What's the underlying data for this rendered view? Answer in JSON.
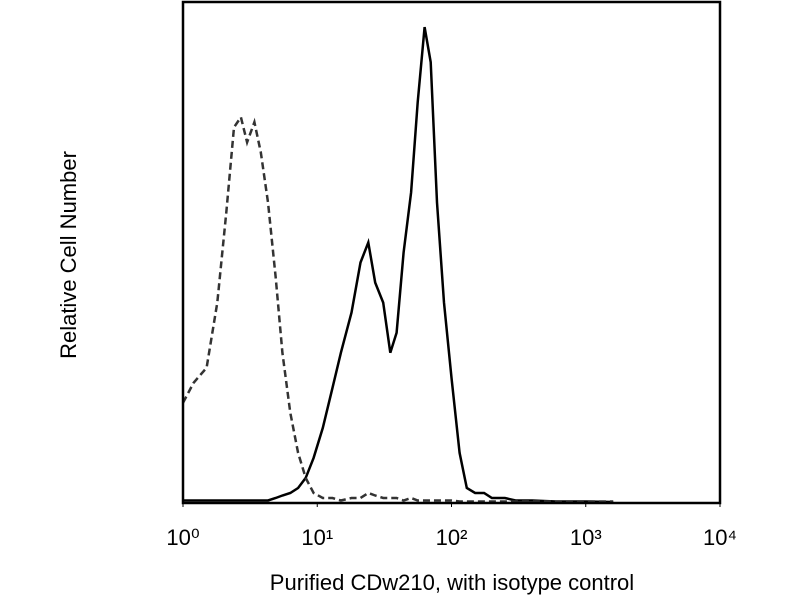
{
  "chart_data": {
    "type": "line",
    "xlabel": "Purified CDw210, with isotype control",
    "ylabel": "Relative Cell Number",
    "xscale": "log",
    "xlim": [
      1,
      10000
    ],
    "xticks": [
      {
        "value": 1,
        "label": "10⁰"
      },
      {
        "value": 10,
        "label": "10¹"
      },
      {
        "value": 100,
        "label": "10²"
      },
      {
        "value": 1000,
        "label": "10³"
      },
      {
        "value": 10000,
        "label": "10⁴"
      }
    ],
    "ylim": [
      0,
      100
    ],
    "x": [
      1,
      1.2,
      1.5,
      1.8,
      2.1,
      2.4,
      2.7,
      3.0,
      3.4,
      3.8,
      4.3,
      4.9,
      5.5,
      6.3,
      7.2,
      8.2,
      9.4,
      11,
      13,
      15,
      18,
      21,
      24,
      27,
      31,
      35,
      39,
      44,
      50,
      56,
      63,
      70,
      78,
      88,
      100,
      115,
      130,
      150,
      175,
      200,
      250,
      300,
      400,
      600,
      1000,
      1600
    ],
    "series": [
      {
        "color": "#000000",
        "dash": false,
        "values": [
          0.5,
          0.5,
          0.5,
          0.5,
          0.5,
          0.5,
          0.5,
          0.5,
          0.5,
          0.5,
          0.5,
          1,
          1.5,
          2,
          3,
          5,
          9,
          15,
          23,
          30,
          38,
          48,
          52,
          44,
          40,
          30,
          34,
          50,
          62,
          80,
          95,
          88,
          60,
          40,
          25,
          10,
          3,
          2,
          2,
          1,
          1,
          0.5,
          0.5,
          0.3,
          0.3,
          0.2
        ]
      },
      {
        "color": "#333333",
        "dash": true,
        "values": [
          20,
          24,
          27,
          40,
          58,
          75,
          77,
          72,
          76,
          70,
          60,
          45,
          30,
          18,
          10,
          5,
          2,
          1,
          1,
          0.5,
          1,
          1,
          2,
          1.5,
          1,
          1,
          1,
          0.5,
          1,
          0.5,
          0.5,
          0.5,
          0.5,
          0.5,
          0.5,
          0.3,
          0.3,
          0.3,
          0.3,
          0.3,
          0.3,
          0.3,
          0.3,
          0.3,
          0.3,
          0.3
        ]
      }
    ]
  }
}
